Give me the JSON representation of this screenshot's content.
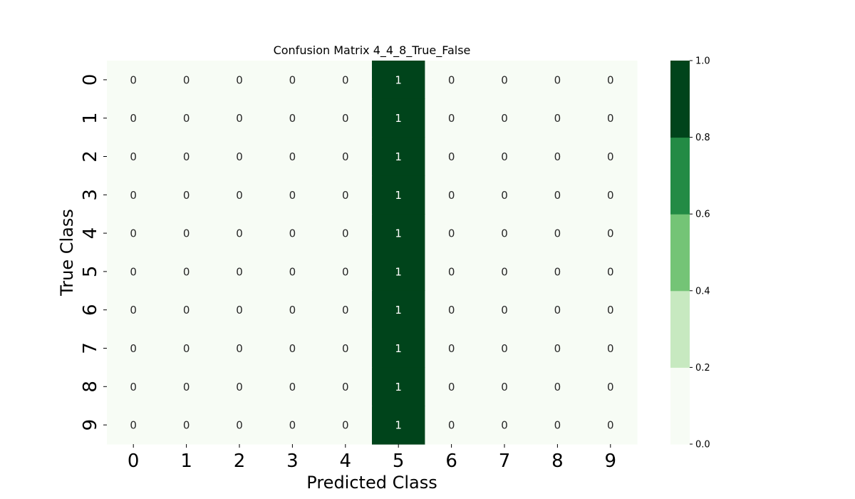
{
  "chart_data": {
    "type": "heatmap",
    "title": "Confusion Matrix 4_4_8_True_False",
    "xlabel": "Predicted Class",
    "ylabel": "True Class",
    "x_categories": [
      "0",
      "1",
      "2",
      "3",
      "4",
      "5",
      "6",
      "7",
      "8",
      "9"
    ],
    "y_categories": [
      "0",
      "1",
      "2",
      "3",
      "4",
      "5",
      "6",
      "7",
      "8",
      "9"
    ],
    "values": [
      [
        0,
        0,
        0,
        0,
        0,
        1,
        0,
        0,
        0,
        0
      ],
      [
        0,
        0,
        0,
        0,
        0,
        1,
        0,
        0,
        0,
        0
      ],
      [
        0,
        0,
        0,
        0,
        0,
        1,
        0,
        0,
        0,
        0
      ],
      [
        0,
        0,
        0,
        0,
        0,
        1,
        0,
        0,
        0,
        0
      ],
      [
        0,
        0,
        0,
        0,
        0,
        1,
        0,
        0,
        0,
        0
      ],
      [
        0,
        0,
        0,
        0,
        0,
        1,
        0,
        0,
        0,
        0
      ],
      [
        0,
        0,
        0,
        0,
        0,
        1,
        0,
        0,
        0,
        0
      ],
      [
        0,
        0,
        0,
        0,
        0,
        1,
        0,
        0,
        0,
        0
      ],
      [
        0,
        0,
        0,
        0,
        0,
        1,
        0,
        0,
        0,
        0
      ],
      [
        0,
        0,
        0,
        0,
        0,
        1,
        0,
        0,
        0,
        0
      ]
    ],
    "colorbar": {
      "range": [
        0.0,
        1.0
      ],
      "ticks": [
        "0.0",
        "0.2",
        "0.4",
        "0.6",
        "0.8",
        "1.0"
      ],
      "bins": [
        {
          "from": 0.0,
          "to": 0.2,
          "color": "#f7fcf5"
        },
        {
          "from": 0.2,
          "to": 0.4,
          "color": "#c7e9c0"
        },
        {
          "from": 0.4,
          "to": 0.6,
          "color": "#74c476"
        },
        {
          "from": 0.6,
          "to": 0.8,
          "color": "#238b45"
        },
        {
          "from": 0.8,
          "to": 1.0,
          "color": "#00441b"
        }
      ]
    },
    "annotation_colors": {
      "light": "#ffffff",
      "dark": "#262626"
    }
  }
}
